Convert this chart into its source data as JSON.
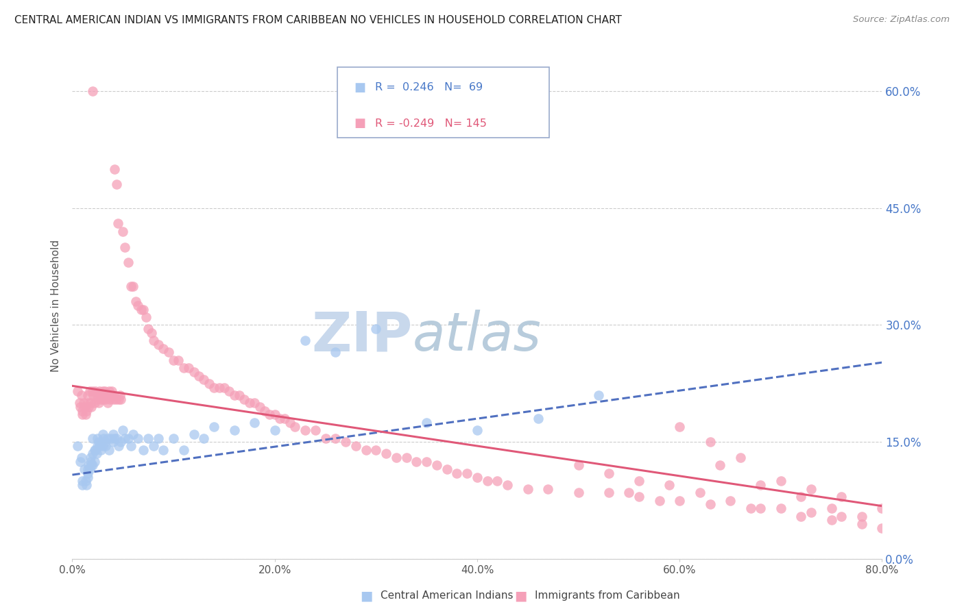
{
  "title": "CENTRAL AMERICAN INDIAN VS IMMIGRANTS FROM CARIBBEAN NO VEHICLES IN HOUSEHOLD CORRELATION CHART",
  "source": "Source: ZipAtlas.com",
  "ylabel": "No Vehicles in Household",
  "r1": 0.246,
  "n1": 69,
  "r2": -0.249,
  "n2": 145,
  "legend_label1": "Central American Indians",
  "legend_label2": "Immigrants from Caribbean",
  "xlim": [
    0.0,
    0.8
  ],
  "ylim": [
    0.0,
    0.65
  ],
  "yticks": [
    0.0,
    0.15,
    0.3,
    0.45,
    0.6
  ],
  "xticks": [
    0.0,
    0.2,
    0.4,
    0.6,
    0.8
  ],
  "color_blue": "#A8C8F0",
  "color_pink": "#F5A0B8",
  "color_blue_line": "#5070C0",
  "color_pink_line": "#E05878",
  "color_blue_text": "#4878C8",
  "watermark_color": "#D8E8F8",
  "background": "#FFFFFF",
  "blue_line_start_y": 0.108,
  "blue_line_end_y": 0.252,
  "pink_line_start_y": 0.222,
  "pink_line_end_y": 0.068,
  "blue_scatter_x": [
    0.005,
    0.008,
    0.009,
    0.01,
    0.01,
    0.012,
    0.013,
    0.014,
    0.015,
    0.015,
    0.015,
    0.016,
    0.017,
    0.018,
    0.018,
    0.019,
    0.02,
    0.02,
    0.02,
    0.022,
    0.022,
    0.023,
    0.024,
    0.025,
    0.025,
    0.026,
    0.027,
    0.028,
    0.029,
    0.03,
    0.03,
    0.031,
    0.032,
    0.033,
    0.035,
    0.036,
    0.038,
    0.04,
    0.04,
    0.042,
    0.044,
    0.046,
    0.048,
    0.05,
    0.052,
    0.055,
    0.058,
    0.06,
    0.065,
    0.07,
    0.075,
    0.08,
    0.085,
    0.09,
    0.1,
    0.11,
    0.12,
    0.13,
    0.14,
    0.16,
    0.18,
    0.2,
    0.23,
    0.26,
    0.3,
    0.35,
    0.4,
    0.46,
    0.52
  ],
  "blue_scatter_y": [
    0.145,
    0.125,
    0.13,
    0.1,
    0.095,
    0.115,
    0.1,
    0.095,
    0.115,
    0.11,
    0.105,
    0.12,
    0.115,
    0.13,
    0.125,
    0.12,
    0.155,
    0.135,
    0.12,
    0.14,
    0.125,
    0.14,
    0.135,
    0.155,
    0.145,
    0.15,
    0.145,
    0.14,
    0.15,
    0.16,
    0.145,
    0.155,
    0.15,
    0.145,
    0.155,
    0.14,
    0.155,
    0.16,
    0.15,
    0.155,
    0.155,
    0.145,
    0.15,
    0.165,
    0.155,
    0.155,
    0.145,
    0.16,
    0.155,
    0.14,
    0.155,
    0.145,
    0.155,
    0.14,
    0.155,
    0.14,
    0.16,
    0.155,
    0.17,
    0.165,
    0.175,
    0.165,
    0.28,
    0.265,
    0.295,
    0.175,
    0.165,
    0.18,
    0.21
  ],
  "pink_scatter_x": [
    0.005,
    0.007,
    0.008,
    0.009,
    0.01,
    0.01,
    0.011,
    0.012,
    0.013,
    0.014,
    0.015,
    0.015,
    0.016,
    0.017,
    0.018,
    0.019,
    0.02,
    0.02,
    0.021,
    0.022,
    0.023,
    0.024,
    0.025,
    0.026,
    0.027,
    0.028,
    0.029,
    0.03,
    0.03,
    0.031,
    0.032,
    0.033,
    0.034,
    0.035,
    0.036,
    0.037,
    0.038,
    0.039,
    0.04,
    0.041,
    0.042,
    0.043,
    0.044,
    0.045,
    0.046,
    0.047,
    0.048,
    0.05,
    0.052,
    0.055,
    0.058,
    0.06,
    0.063,
    0.065,
    0.068,
    0.07,
    0.073,
    0.075,
    0.078,
    0.08,
    0.085,
    0.09,
    0.095,
    0.1,
    0.105,
    0.11,
    0.115,
    0.12,
    0.125,
    0.13,
    0.135,
    0.14,
    0.145,
    0.15,
    0.155,
    0.16,
    0.165,
    0.17,
    0.175,
    0.18,
    0.185,
    0.19,
    0.195,
    0.2,
    0.205,
    0.21,
    0.215,
    0.22,
    0.23,
    0.24,
    0.25,
    0.26,
    0.27,
    0.28,
    0.29,
    0.3,
    0.31,
    0.32,
    0.33,
    0.34,
    0.35,
    0.36,
    0.37,
    0.38,
    0.39,
    0.4,
    0.41,
    0.42,
    0.43,
    0.45,
    0.47,
    0.5,
    0.53,
    0.56,
    0.6,
    0.63,
    0.67,
    0.7,
    0.73,
    0.76,
    0.6,
    0.63,
    0.66,
    0.7,
    0.73,
    0.76,
    0.8,
    0.64,
    0.68,
    0.72,
    0.75,
    0.78,
    0.5,
    0.53,
    0.56,
    0.59,
    0.62,
    0.65,
    0.68,
    0.72,
    0.75,
    0.78,
    0.8,
    0.55,
    0.58
  ],
  "pink_scatter_y": [
    0.215,
    0.2,
    0.195,
    0.21,
    0.19,
    0.185,
    0.2,
    0.195,
    0.185,
    0.19,
    0.21,
    0.2,
    0.195,
    0.215,
    0.2,
    0.195,
    0.6,
    0.215,
    0.21,
    0.2,
    0.215,
    0.205,
    0.21,
    0.2,
    0.215,
    0.205,
    0.21,
    0.215,
    0.205,
    0.21,
    0.215,
    0.205,
    0.21,
    0.2,
    0.215,
    0.205,
    0.21,
    0.215,
    0.205,
    0.21,
    0.5,
    0.205,
    0.48,
    0.43,
    0.205,
    0.21,
    0.205,
    0.42,
    0.4,
    0.38,
    0.35,
    0.35,
    0.33,
    0.325,
    0.32,
    0.32,
    0.31,
    0.295,
    0.29,
    0.28,
    0.275,
    0.27,
    0.265,
    0.255,
    0.255,
    0.245,
    0.245,
    0.24,
    0.235,
    0.23,
    0.225,
    0.22,
    0.22,
    0.22,
    0.215,
    0.21,
    0.21,
    0.205,
    0.2,
    0.2,
    0.195,
    0.19,
    0.185,
    0.185,
    0.18,
    0.18,
    0.175,
    0.17,
    0.165,
    0.165,
    0.155,
    0.155,
    0.15,
    0.145,
    0.14,
    0.14,
    0.135,
    0.13,
    0.13,
    0.125,
    0.125,
    0.12,
    0.115,
    0.11,
    0.11,
    0.105,
    0.1,
    0.1,
    0.095,
    0.09,
    0.09,
    0.085,
    0.085,
    0.08,
    0.075,
    0.07,
    0.065,
    0.065,
    0.06,
    0.055,
    0.17,
    0.15,
    0.13,
    0.1,
    0.09,
    0.08,
    0.065,
    0.12,
    0.095,
    0.08,
    0.065,
    0.055,
    0.12,
    0.11,
    0.1,
    0.095,
    0.085,
    0.075,
    0.065,
    0.055,
    0.05,
    0.045,
    0.04,
    0.085,
    0.075
  ]
}
